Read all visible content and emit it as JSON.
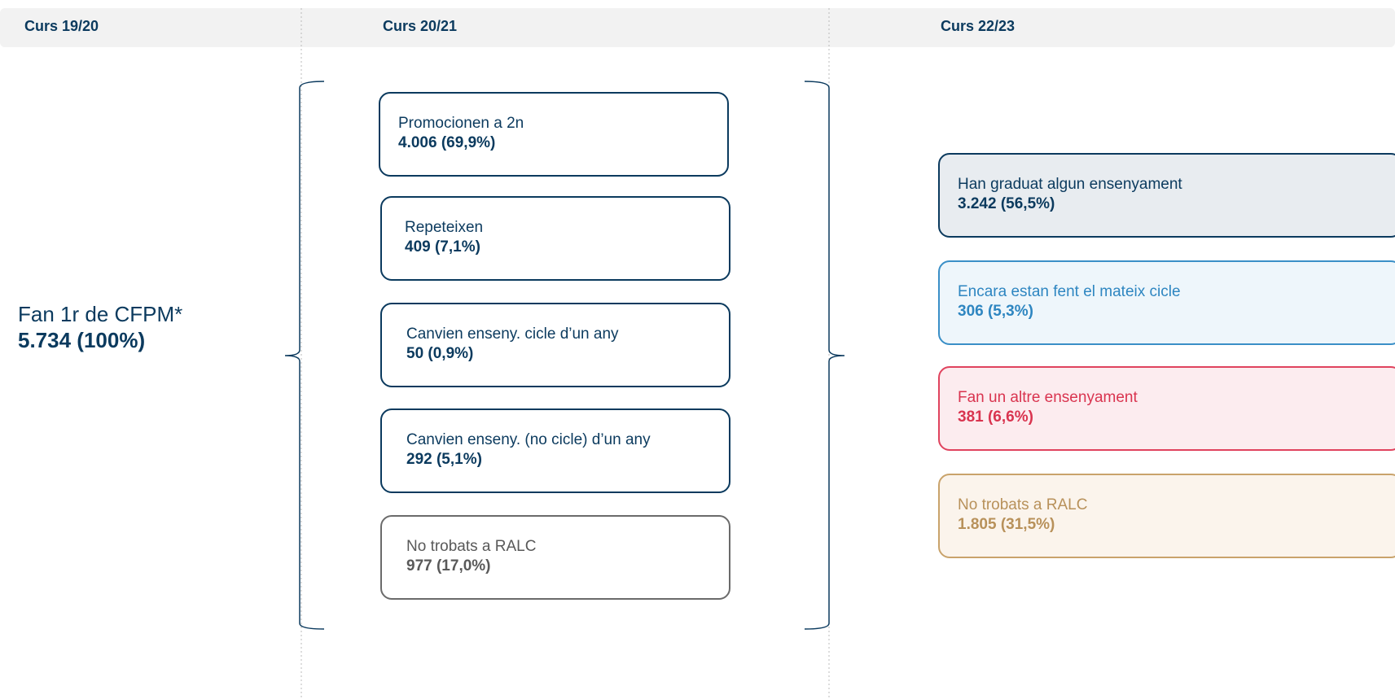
{
  "header": {
    "columns": [
      "Curs 19/20",
      "Curs 20/21",
      "Curs 22/23"
    ]
  },
  "origin": {
    "label": "Fan 1r de CFPM*",
    "value": "5.734 (100%)"
  },
  "middle": [
    {
      "label": "Promocionen a 2n",
      "value": "4.006 (69,9%)"
    },
    {
      "label": "Repeteixen",
      "value": "409 (7,1%)"
    },
    {
      "label": "Canvien enseny. cicle d’un any",
      "value": "50 (0,9%)"
    },
    {
      "label": "Canvien enseny. (no cicle) d’un any",
      "value": "292 (5,1%)"
    },
    {
      "label": "No trobats a RALC",
      "value": "977 (17,0%)"
    }
  ],
  "right": [
    {
      "label": "Han graduat algun ensenyament",
      "value": "3.242 (56,5%)"
    },
    {
      "label": "Encara estan fent el mateix cicle",
      "value": "306 (5,3%)"
    },
    {
      "label": "Fan un altre ensenyament",
      "value": "381 (6,6%)"
    },
    {
      "label": "No trobats a RALC",
      "value": "1.805 (31,5%)"
    }
  ]
}
